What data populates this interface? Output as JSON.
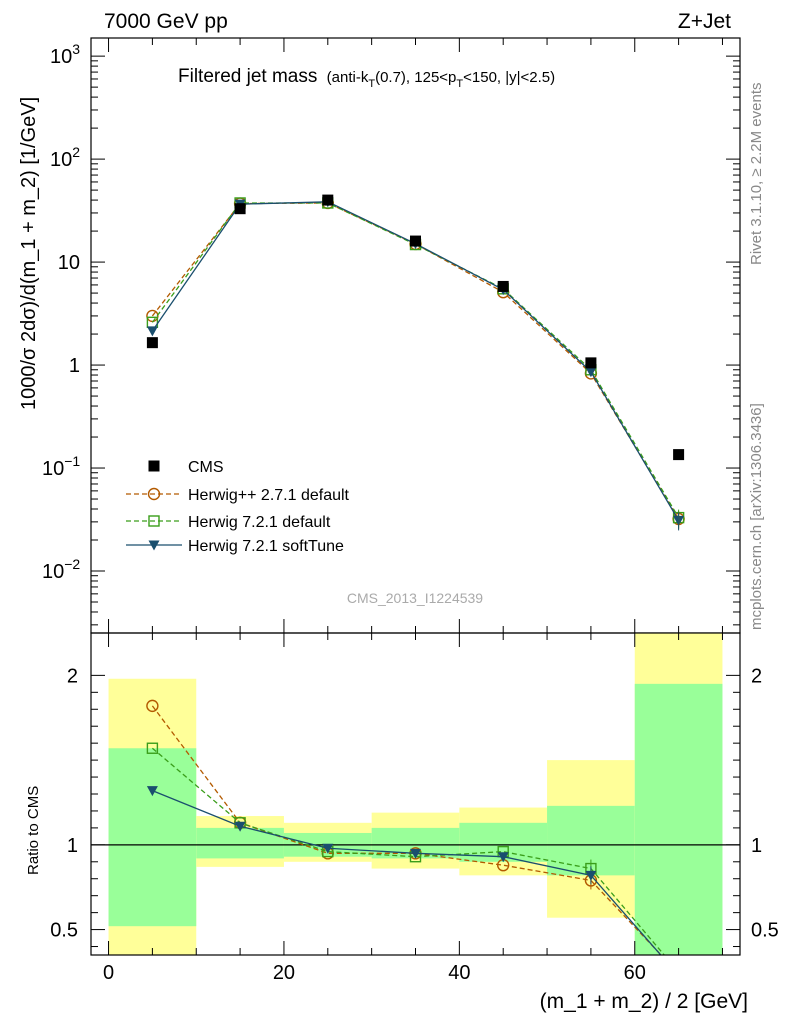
{
  "header": {
    "left": "7000 GeV pp",
    "right": "Z+Jet"
  },
  "side": {
    "rivet": "Rivet 3.1.10, ≥ 2.2M events",
    "mcplots": "mcplots.cern.ch [arXiv:1306.3436]"
  },
  "watermark": "CMS_2013_I1224539",
  "colors": {
    "cms": "#000000",
    "herwigpp": "#b35a00",
    "herwig_default": "#3a9e1a",
    "herwig_soft": "#1a4f6e",
    "band_yellow": "#ffff99",
    "band_green": "#99ff99"
  },
  "chart_data": [
    {
      "type": "line",
      "panel": "main",
      "title": "Filtered jet mass",
      "title_extra": {
        "open": "(anti-k",
        "sub1": "T",
        "mid": "(0.7), 125<p",
        "sub2": "T",
        "close": "<150, |y|<2.5)"
      },
      "ylabel": "1000/σ 2dσ)/d(m_1 + m_2) [1/GeV]",
      "yscale": "log",
      "ylim": [
        0.0025,
        1500
      ],
      "xlim": [
        -2,
        72
      ],
      "y_ticks": [
        {
          "value": 1000,
          "label": "10",
          "exp": "3"
        },
        {
          "value": 100,
          "label": "10",
          "exp": "2"
        },
        {
          "value": 10,
          "label": "10",
          "exp": ""
        },
        {
          "value": 1,
          "label": "1",
          "exp": ""
        },
        {
          "value": 0.1,
          "label": "10",
          "exp": "−1"
        },
        {
          "value": 0.01,
          "label": "10",
          "exp": "−2"
        }
      ],
      "legend_position": "lower-left",
      "series": [
        {
          "name": "CMS",
          "x": [
            5,
            15,
            25,
            35,
            45,
            55,
            65
          ],
          "y": [
            1.65,
            33,
            40,
            16,
            5.8,
            1.05,
            0.135
          ],
          "marker": "square-filled"
        },
        {
          "name": "Herwig++ 2.7.1 default",
          "x": [
            5,
            15,
            25,
            35,
            45,
            55,
            65
          ],
          "y": [
            3.0,
            37,
            37.5,
            15,
            5.1,
            0.83,
            0.032
          ],
          "marker": "circle-open",
          "style": "dashed"
        },
        {
          "name": "Herwig 7.2.1 default",
          "x": [
            5,
            15,
            25,
            35,
            45,
            55,
            65
          ],
          "y": [
            2.6,
            37.5,
            37.5,
            14.8,
            5.5,
            0.9,
            0.033
          ],
          "marker": "square-open",
          "style": "dashed"
        },
        {
          "name": "Herwig 7.2.1 softTune",
          "x": [
            5,
            15,
            25,
            35,
            45,
            55,
            65
          ],
          "y": [
            2.15,
            36.5,
            38.5,
            15.1,
            5.4,
            0.86,
            0.031
          ],
          "marker": "triangle-down",
          "style": "solid"
        }
      ]
    },
    {
      "type": "line",
      "panel": "ratio",
      "ylabel": "Ratio to CMS",
      "xlabel": "(m_1 + m_2) / 2 [GeV]",
      "ylim": [
        0.35,
        2.25
      ],
      "xlim": [
        -2,
        72
      ],
      "x_ticks": [
        0,
        20,
        40,
        60
      ],
      "y_ticks": [
        0.5,
        1,
        2
      ],
      "bands": [
        {
          "x0": 0,
          "x1": 10,
          "yellow": [
            0.35,
            1.98
          ],
          "green": [
            0.52,
            1.57
          ]
        },
        {
          "x0": 10,
          "x1": 20,
          "yellow": [
            0.87,
            1.17
          ],
          "green": [
            0.92,
            1.1
          ]
        },
        {
          "x0": 20,
          "x1": 30,
          "yellow": [
            0.9,
            1.13
          ],
          "green": [
            0.93,
            1.07
          ]
        },
        {
          "x0": 30,
          "x1": 40,
          "yellow": [
            0.86,
            1.19
          ],
          "green": [
            0.92,
            1.1
          ]
        },
        {
          "x0": 40,
          "x1": 50,
          "yellow": [
            0.82,
            1.22
          ],
          "green": [
            0.9,
            1.13
          ]
        },
        {
          "x0": 50,
          "x1": 60,
          "yellow": [
            0.57,
            1.5
          ],
          "green": [
            0.82,
            1.23
          ]
        },
        {
          "x0": 60,
          "x1": 70,
          "yellow": [
            0.35,
            2.25
          ],
          "green": [
            0.35,
            1.95
          ]
        }
      ],
      "series": [
        {
          "name": "Herwig++ 2.7.1 default",
          "x": [
            5,
            15,
            25,
            35,
            45,
            55,
            65
          ],
          "y": [
            1.82,
            1.13,
            0.95,
            0.95,
            0.88,
            0.79,
            0.24
          ]
        },
        {
          "name": "Herwig 7.2.1 default",
          "x": [
            5,
            15,
            25,
            35,
            45,
            55,
            65
          ],
          "y": [
            1.57,
            1.13,
            0.96,
            0.93,
            0.96,
            0.86,
            0.25
          ]
        },
        {
          "name": "Herwig 7.2.1 softTune",
          "x": [
            5,
            15,
            25,
            35,
            45,
            55,
            65
          ],
          "y": [
            1.32,
            1.11,
            0.98,
            0.95,
            0.93,
            0.82,
            0.23
          ]
        }
      ]
    }
  ]
}
